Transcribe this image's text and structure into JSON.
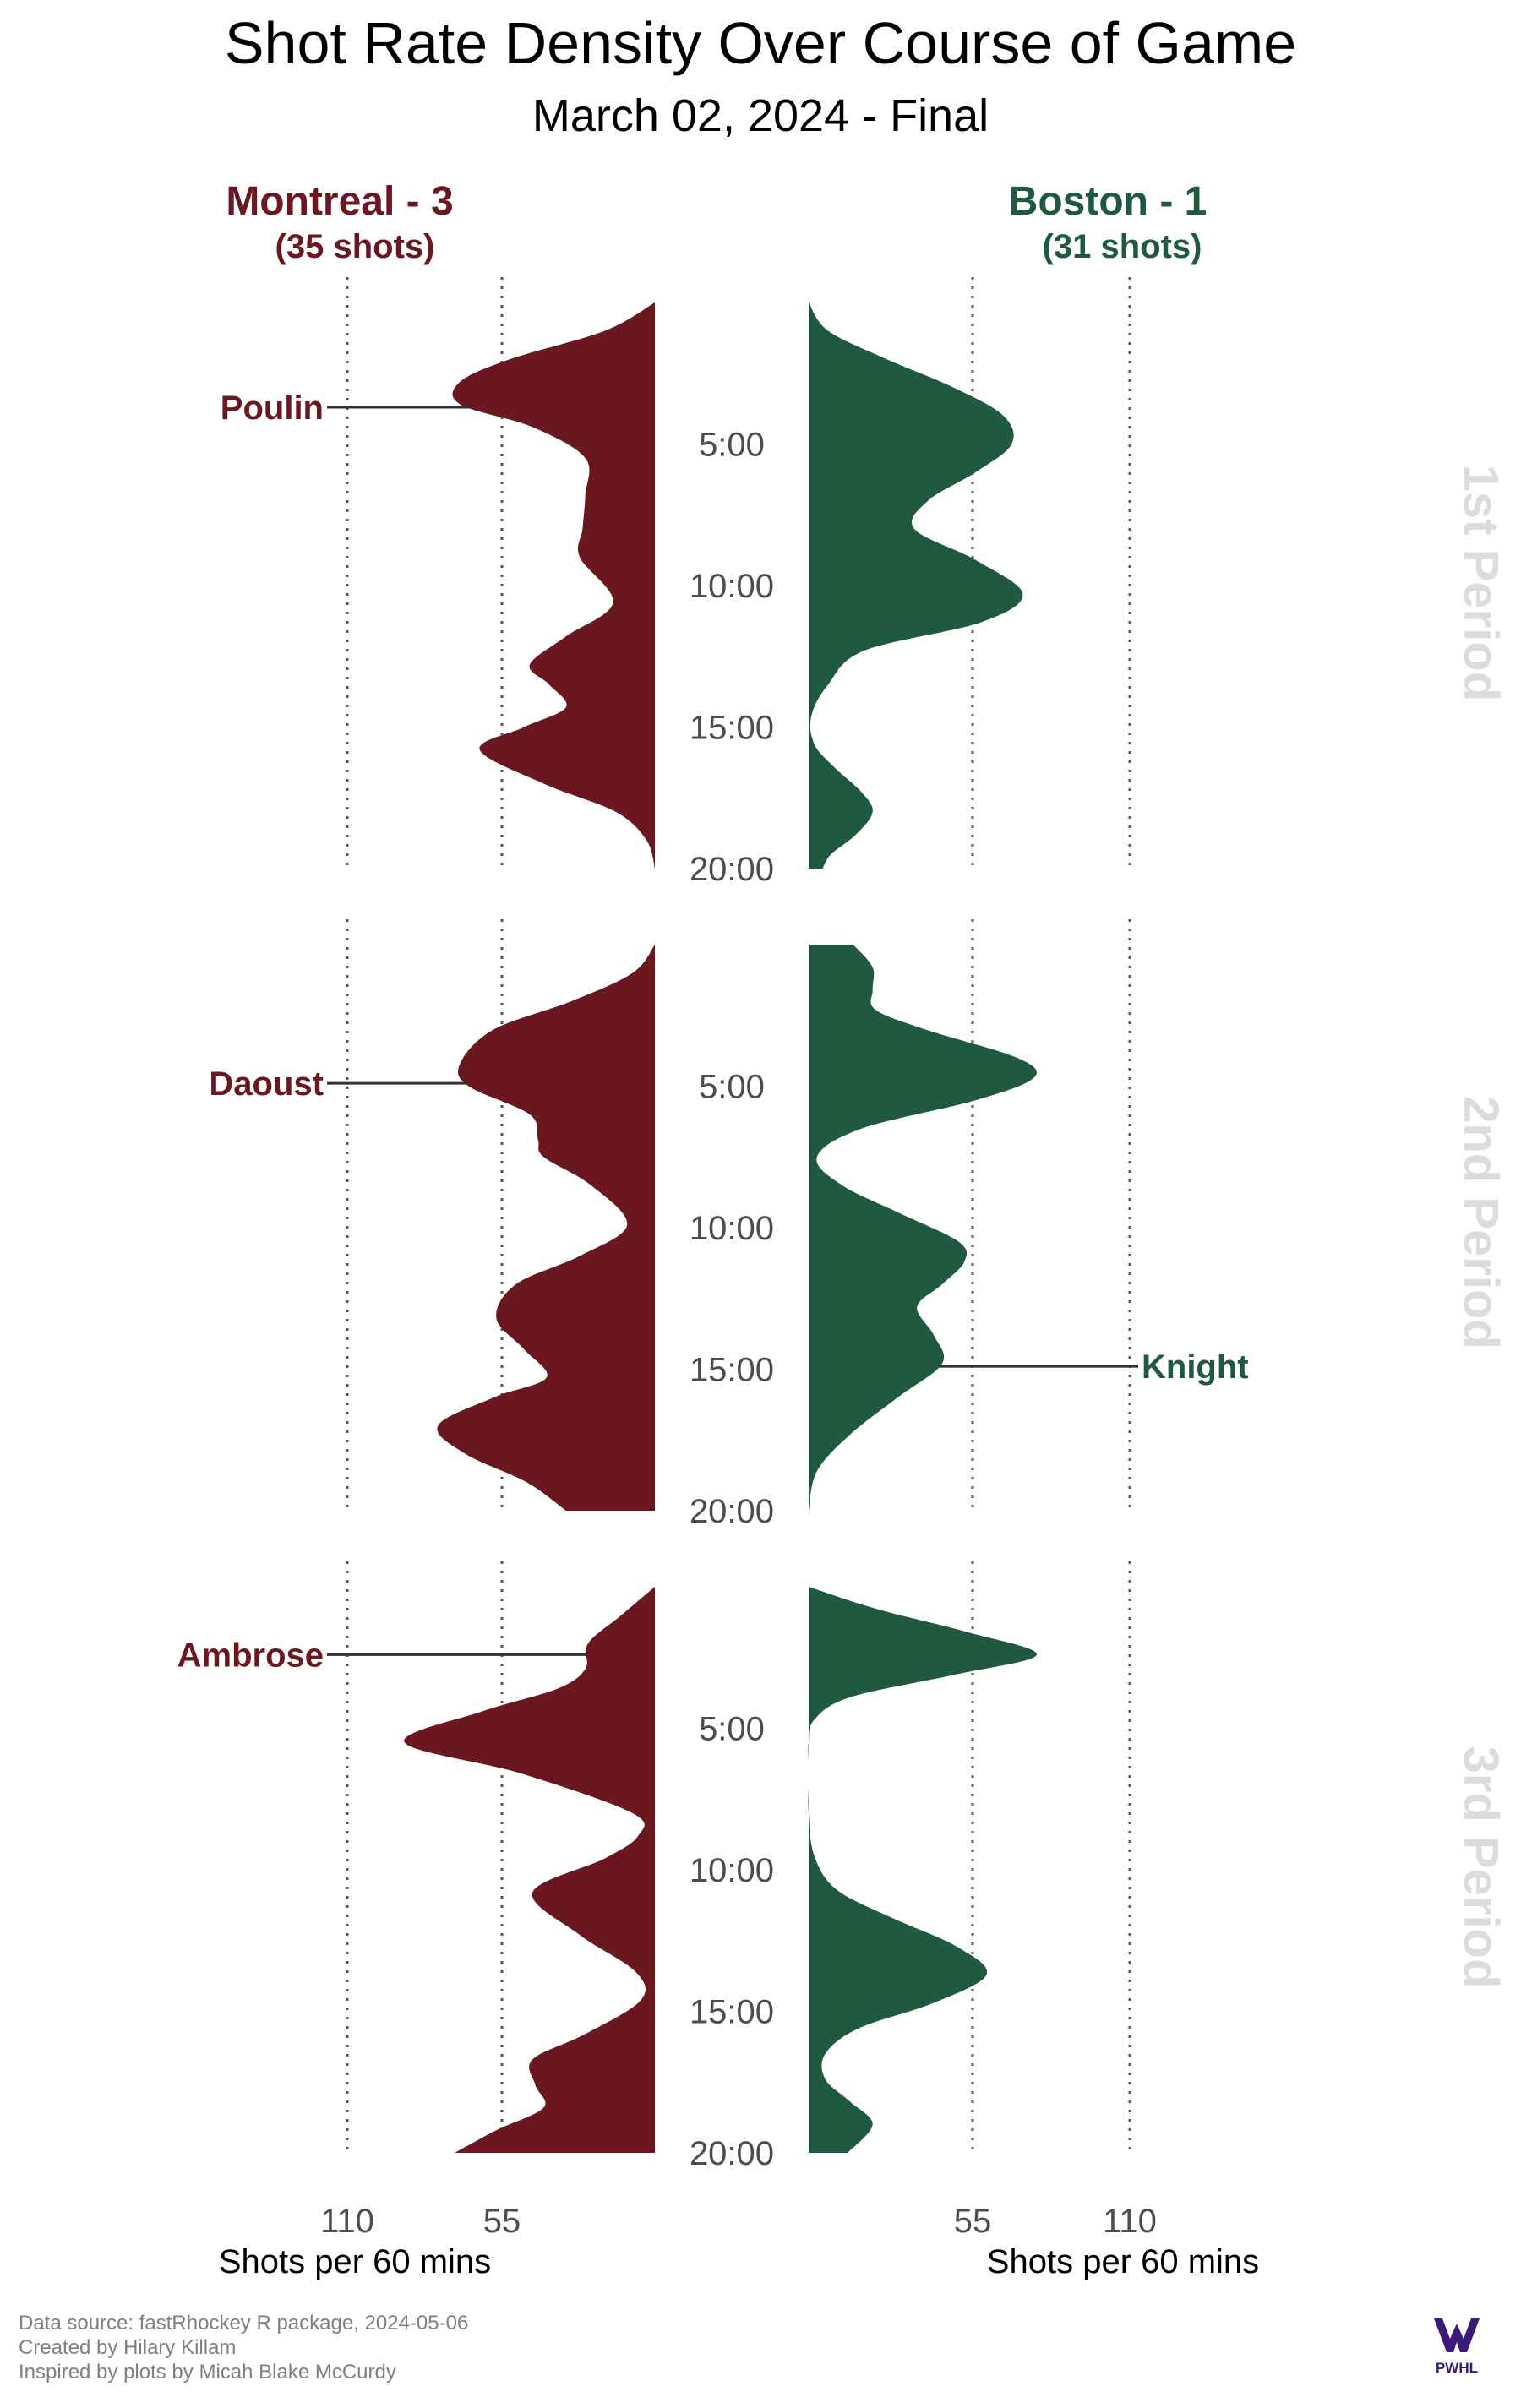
{
  "title": "Shot Rate Density Over Course of Game",
  "subtitle": "March 02, 2024 - Final",
  "teams": {
    "home": {
      "label": "Montreal - 3",
      "shots": "(35 shots)",
      "color": "#6b1720"
    },
    "away": {
      "label": "Boston - 1",
      "shots": "(31 shots)",
      "color": "#1e5940"
    }
  },
  "axis": {
    "left_ticks": [
      "110",
      "55"
    ],
    "right_ticks": [
      "55",
      "110"
    ],
    "title": "Shots per 60 mins"
  },
  "period_labels": [
    "1st Period",
    "2nd Period",
    "3rd Period"
  ],
  "time_labels": [
    "5:00",
    "10:00",
    "15:00",
    "20:00"
  ],
  "player_labels": [
    {
      "name": "Poulin",
      "team": "home",
      "period": 1,
      "minute": 3.7
    },
    {
      "name": "Daoust",
      "team": "home",
      "period": 2,
      "minute": 4.9
    },
    {
      "name": "Knight",
      "team": "away",
      "period": 2,
      "minute": 14.9
    },
    {
      "name": "Ambrose",
      "team": "home",
      "period": 3,
      "minute": 2.4
    }
  ],
  "chart_data": {
    "type": "area",
    "title": "Shot Rate Density Over Course of Game",
    "subtitle": "March 02, 2024 - Final",
    "xlabel": "Shots per 60 mins",
    "ylabel": "",
    "x_ticks": [
      55,
      110
    ],
    "ylim": [
      0,
      20
    ],
    "grid": "dotted vertical lines at 55 and 110",
    "series": [
      {
        "name": "Montreal - 3",
        "period": "1st Period",
        "minutes": [
          0,
          1,
          2,
          2.8,
          3.6,
          4.4,
          5.5,
          6.8,
          8,
          9,
          10.6,
          11.8,
          12.8,
          13.5,
          14.3,
          15,
          15.8,
          17,
          18,
          19,
          20
        ],
        "rate": [
          0,
          18,
          52,
          70,
          70,
          44,
          25,
          25,
          26,
          27,
          15,
          32,
          45,
          38,
          32,
          47,
          63,
          40,
          14,
          3,
          0
        ]
      },
      {
        "name": "Montreal - 3",
        "period": "2nd Period",
        "minutes": [
          0,
          1,
          2,
          3,
          4.2,
          5,
          6,
          6.9,
          7.5,
          8.5,
          9.9,
          11,
          12,
          13.2,
          14.3,
          15.3,
          16,
          17,
          18,
          19,
          20
        ],
        "rate": [
          0,
          8,
          30,
          58,
          70,
          67,
          45,
          42,
          40,
          23,
          10,
          27,
          50,
          57,
          47,
          39,
          58,
          78,
          68,
          46,
          32
        ]
      },
      {
        "name": "Montreal - 3",
        "period": "3rd Period",
        "minutes": [
          0,
          1,
          2,
          2.9,
          3.6,
          4.4,
          5.5,
          6.6,
          8,
          8.8,
          9.6,
          10.8,
          12.3,
          13.6,
          14.6,
          15.8,
          16.7,
          17.6,
          18.4,
          19.2,
          20
        ],
        "rate": [
          0,
          12,
          24,
          25,
          35,
          62,
          90,
          48,
          8,
          6,
          18,
          44,
          27,
          7,
          5,
          25,
          44,
          43,
          40,
          57,
          72
        ]
      },
      {
        "name": "Boston - 1",
        "period": "1st Period",
        "minutes": [
          0,
          1,
          2,
          3,
          4,
          5,
          6,
          7,
          8,
          9.1,
          10.3,
          11.3,
          12.3,
          13.5,
          14.6,
          15.6,
          16.4,
          17.3,
          18,
          18.8,
          19.5,
          20
        ],
        "rate": [
          0,
          7,
          28,
          52,
          70,
          73,
          60,
          43,
          38,
          60,
          77,
          62,
          20,
          7,
          1,
          2,
          9,
          19,
          23,
          17,
          8,
          5
        ]
      },
      {
        "name": "Boston - 1",
        "period": "2nd Period",
        "minutes": [
          0,
          0.8,
          1.6,
          2.3,
          3,
          4,
          4.7,
          5.5,
          6.5,
          7.5,
          8.5,
          9.5,
          10.5,
          11.2,
          12,
          12.8,
          13.8,
          14.8,
          16,
          17.3,
          18.6,
          20
        ],
        "rate": [
          16,
          23,
          23,
          24,
          42,
          75,
          81,
          60,
          19,
          3,
          12,
          33,
          54,
          56,
          48,
          39,
          45,
          48,
          32,
          15,
          3,
          0
        ]
      },
      {
        "name": "Boston - 1",
        "period": "3rd Period",
        "minutes": [
          0,
          0.8,
          1.6,
          2.4,
          3.1,
          3.9,
          4.7,
          5.5,
          6.2,
          7,
          8,
          9.5,
          10.7,
          11.7,
          12.7,
          13.7,
          14.7,
          15.6,
          16.5,
          17.4,
          18.2,
          19,
          20
        ],
        "rate": [
          0,
          25,
          57,
          82,
          53,
          15,
          2,
          0,
          0,
          0,
          0,
          2,
          10,
          30,
          53,
          64,
          45,
          18,
          6,
          6,
          15,
          23,
          14
        ]
      }
    ]
  },
  "captions": [
    "Data source: fastRhockey R package, 2024-05-06",
    "Created by Hilary Killam",
    "Inspired by plots by Micah Blake McCurdy"
  ],
  "logo": {
    "text": "PWHL",
    "color": "#3c1a78"
  }
}
